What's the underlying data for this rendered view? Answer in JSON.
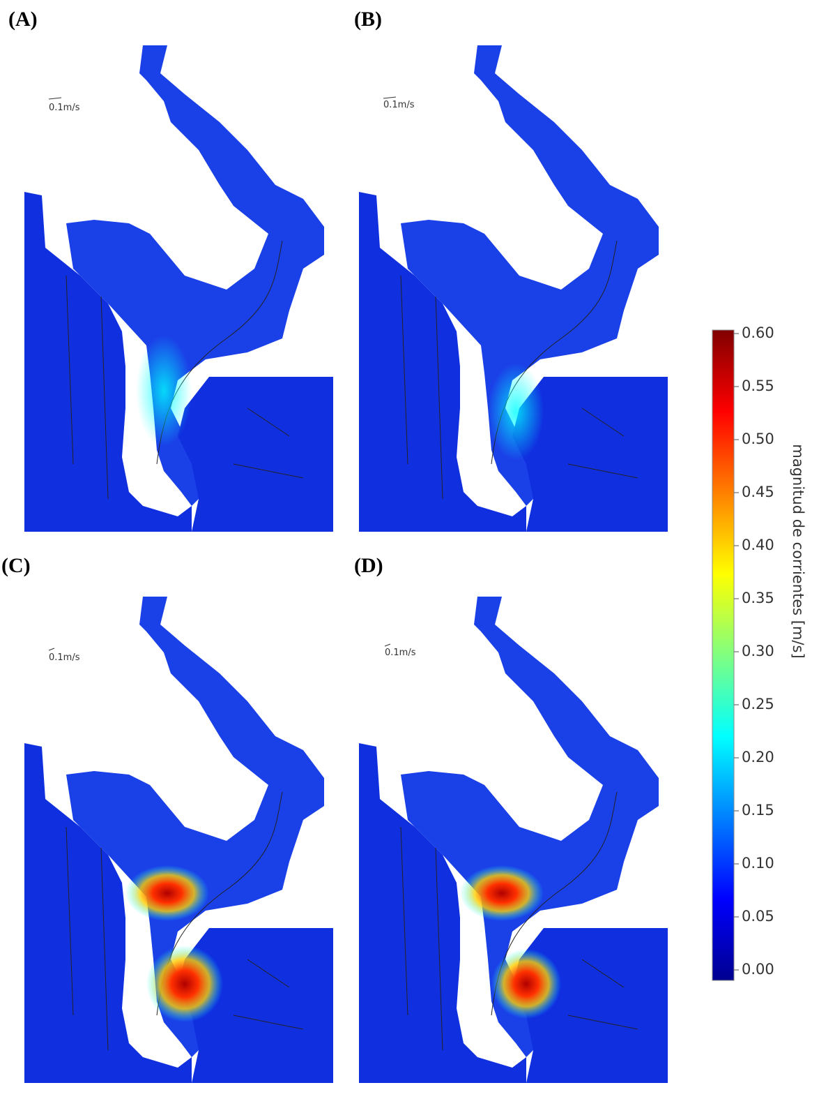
{
  "panels": [
    {
      "label": "(A)",
      "scale_label": "0.1m/s"
    },
    {
      "label": "(B)",
      "scale_label": "0.1m/s"
    },
    {
      "label": "(C)",
      "scale_label": "0.1m/s"
    },
    {
      "label": "(D)",
      "scale_label": "0.1m/s"
    }
  ],
  "colorbar": {
    "label": "magnitud de corrientes [m/s]",
    "ylim": [
      0,
      0.6
    ],
    "yticks": [
      {
        "value": 0,
        "label": "0.00"
      },
      0.05,
      {
        "value": 0.1,
        "label": "0.10"
      },
      0.15,
      {
        "value": 0.2,
        "label": "0.20"
      },
      0.25,
      {
        "value": 0.3,
        "label": "0.30"
      },
      0.35,
      {
        "value": 0.4,
        "label": "0.40"
      },
      0.45,
      {
        "value": 0.5,
        "label": "0.50"
      },
      0.55,
      {
        "value": 0.6,
        "label": "0.60"
      }
    ],
    "colors": [
      "#00008f",
      "#0000ff",
      "#0080ff",
      "#00ffff",
      "#80ff80",
      "#ffff00",
      "#ff8000",
      "#ff0000",
      "#800000"
    ]
  }
}
